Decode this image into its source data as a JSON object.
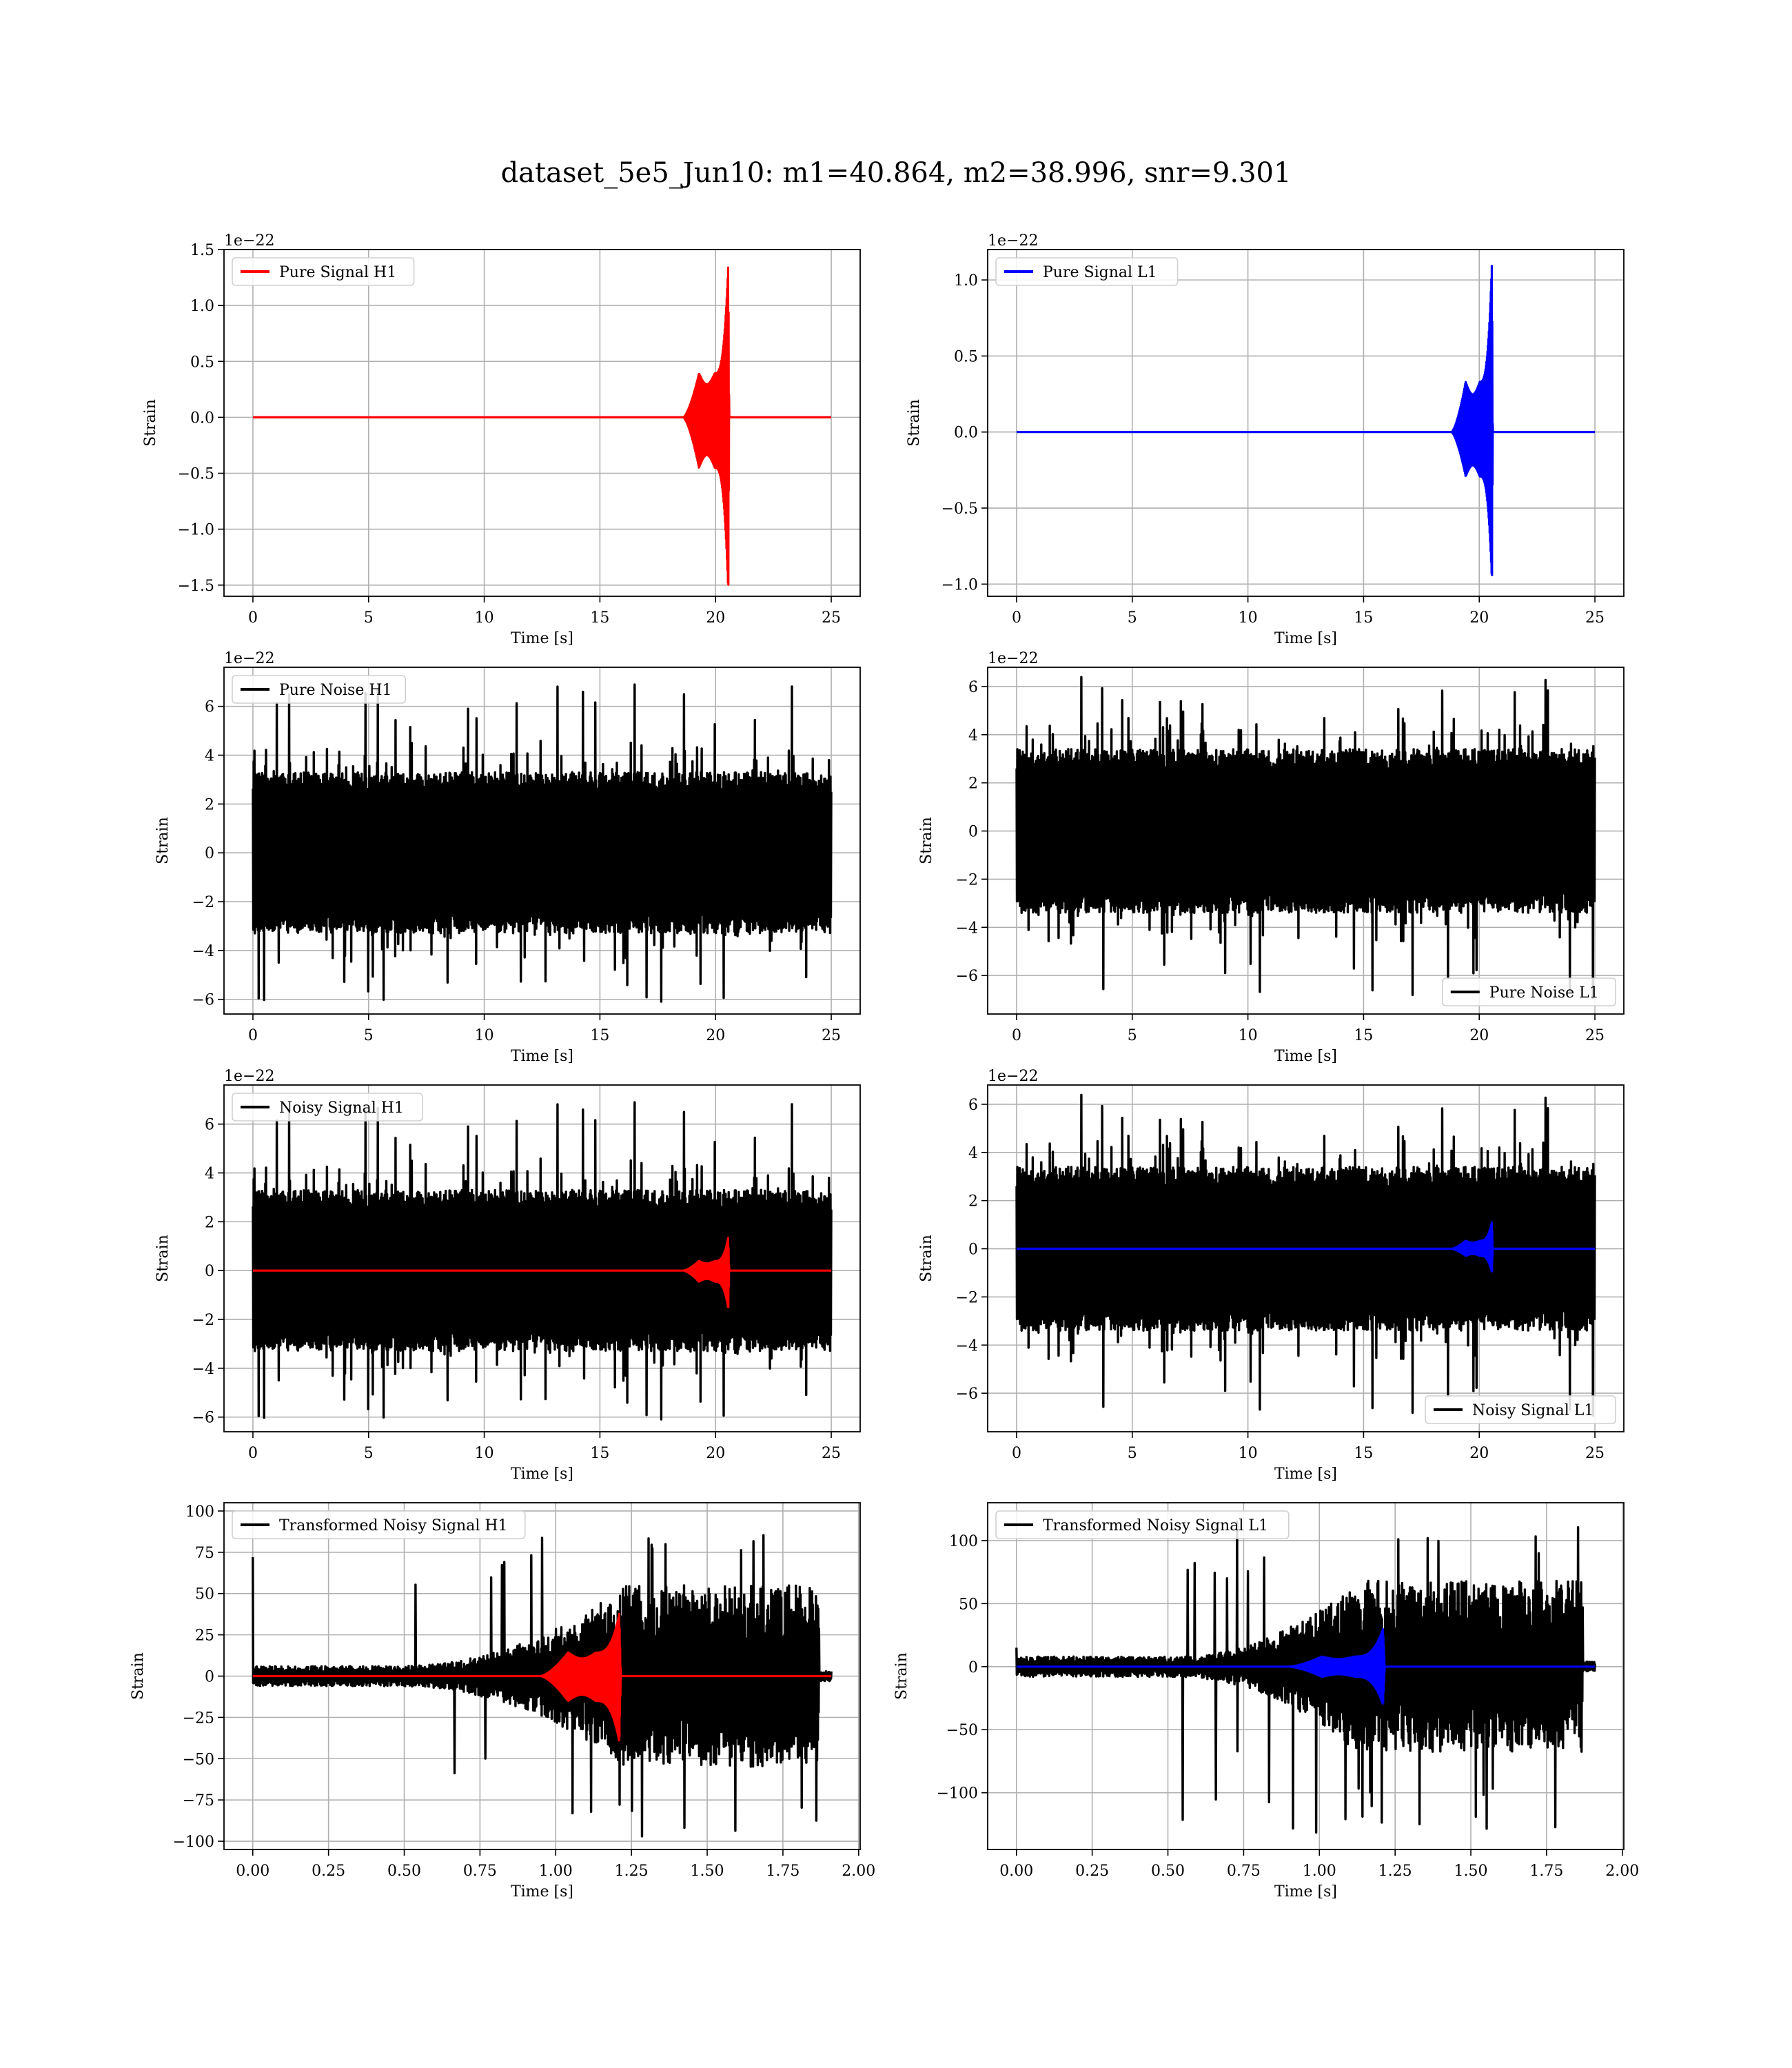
{
  "figure": {
    "title": "dataset_5e5_Jun10: m1=40.864, m2=38.996, snr=9.301",
    "colors": {
      "h1_signal": "#ff0000",
      "l1_signal": "#0000ff",
      "noise": "#000000",
      "grid": "#b0b0b0",
      "frame": "#000000"
    }
  },
  "chart_data": [
    {
      "id": "pure-signal-h1",
      "type": "line",
      "xlabel": "Time [s]",
      "ylabel": "Strain",
      "offset_text": "1e−22",
      "xlim": [
        -1.25,
        26.25
      ],
      "ylim": [
        -1.6,
        1.5
      ],
      "xticks": [
        0,
        5,
        10,
        15,
        20,
        25
      ],
      "xtick_labels": [
        "0",
        "5",
        "10",
        "15",
        "20",
        "25"
      ],
      "yticks": [
        -1.5,
        -1.0,
        -0.5,
        0.0,
        0.5,
        1.0,
        1.5
      ],
      "ytick_labels": [
        "−1.5",
        "−1.0",
        "−0.5",
        "0.0",
        "0.5",
        "1.0",
        "1.5"
      ],
      "legend": {
        "loc": "upper left"
      },
      "series": [
        {
          "name": "Pure Signal H1",
          "color": "#ff0000",
          "kind": "chirp",
          "x_start": 0,
          "x_end": 25,
          "t_merge": 20.55,
          "chirp_start": 18.6,
          "amp_plateau": 0.45,
          "amp_peak_pos": 1.38,
          "amp_peak_neg": -1.58,
          "scale": 1
        }
      ]
    },
    {
      "id": "pure-signal-l1",
      "type": "line",
      "xlabel": "Time [s]",
      "ylabel": "Strain",
      "offset_text": "1e−22",
      "xlim": [
        -1.25,
        26.25
      ],
      "ylim": [
        -1.08,
        1.2
      ],
      "xticks": [
        0,
        5,
        10,
        15,
        20,
        25
      ],
      "xtick_labels": [
        "0",
        "5",
        "10",
        "15",
        "20",
        "25"
      ],
      "yticks": [
        -1.0,
        -0.5,
        0.0,
        0.5,
        1.0
      ],
      "ytick_labels": [
        "−1.0",
        "−0.5",
        "0.0",
        "0.5",
        "1.0"
      ],
      "legend": {
        "loc": "upper left"
      },
      "series": [
        {
          "name": "Pure Signal L1",
          "color": "#0000ff",
          "kind": "chirp",
          "x_start": 0,
          "x_end": 25,
          "t_merge": 20.55,
          "chirp_start": 18.8,
          "amp_plateau": 0.33,
          "amp_peak_pos": 1.13,
          "amp_peak_neg": -1.0,
          "scale": 1
        }
      ]
    },
    {
      "id": "pure-noise-h1",
      "type": "line",
      "xlabel": "Time [s]",
      "ylabel": "Strain",
      "offset_text": "1e−22",
      "xlim": [
        -1.25,
        26.25
      ],
      "ylim": [
        -6.6,
        7.6
      ],
      "xticks": [
        0,
        5,
        10,
        15,
        20,
        25
      ],
      "xtick_labels": [
        "0",
        "5",
        "10",
        "15",
        "20",
        "25"
      ],
      "yticks": [
        -6,
        -4,
        -2,
        0,
        2,
        4,
        6
      ],
      "ytick_labels": [
        "−6",
        "−4",
        "−2",
        "0",
        "2",
        "4",
        "6"
      ],
      "legend": {
        "loc": "upper left"
      },
      "series": [
        {
          "name": "Pure Noise H1",
          "color": "#000000",
          "kind": "noise",
          "x_start": 0,
          "x_end": 25,
          "band": 3.3,
          "spike_max": 7.0,
          "spike_min": -6.1,
          "seed": 11
        }
      ]
    },
    {
      "id": "pure-noise-l1",
      "type": "line",
      "xlabel": "Time [s]",
      "ylabel": "Strain",
      "offset_text": "1e−22",
      "xlim": [
        -1.25,
        26.25
      ],
      "ylim": [
        -7.6,
        6.8
      ],
      "xticks": [
        0,
        5,
        10,
        15,
        20,
        25
      ],
      "xtick_labels": [
        "0",
        "5",
        "10",
        "15",
        "20",
        "25"
      ],
      "yticks": [
        -6,
        -4,
        -2,
        0,
        2,
        4,
        6
      ],
      "ytick_labels": [
        "−6",
        "−4",
        "−2",
        "0",
        "2",
        "4",
        "6"
      ],
      "legend": {
        "loc": "lower right"
      },
      "series": [
        {
          "name": "Pure Noise L1",
          "color": "#000000",
          "kind": "noise",
          "x_start": 0,
          "x_end": 25,
          "band": 3.4,
          "spike_max": 6.4,
          "spike_min": -7.1,
          "seed": 23
        }
      ]
    },
    {
      "id": "noisy-signal-h1",
      "type": "line",
      "xlabel": "Time [s]",
      "ylabel": "Strain",
      "offset_text": "1e−22",
      "xlim": [
        -1.25,
        26.25
      ],
      "ylim": [
        -6.6,
        7.6
      ],
      "xticks": [
        0,
        5,
        10,
        15,
        20,
        25
      ],
      "xtick_labels": [
        "0",
        "5",
        "10",
        "15",
        "20",
        "25"
      ],
      "yticks": [
        -6,
        -4,
        -2,
        0,
        2,
        4,
        6
      ],
      "ytick_labels": [
        "−6",
        "−4",
        "−2",
        "0",
        "2",
        "4",
        "6"
      ],
      "legend": {
        "loc": "upper left"
      },
      "series": [
        {
          "name": "Noisy Signal H1",
          "color": "#000000",
          "kind": "noise",
          "x_start": 0,
          "x_end": 25,
          "band": 3.3,
          "spike_max": 7.0,
          "spike_min": -6.1,
          "seed": 11
        },
        {
          "name": "",
          "color": "#ff0000",
          "kind": "chirp",
          "x_start": 0,
          "x_end": 25,
          "t_merge": 20.55,
          "chirp_start": 18.6,
          "amp_plateau": 0.45,
          "amp_peak_pos": 1.38,
          "amp_peak_neg": -1.58,
          "scale": 1
        }
      ]
    },
    {
      "id": "noisy-signal-l1",
      "type": "line",
      "xlabel": "Time [s]",
      "ylabel": "Strain",
      "offset_text": "1e−22",
      "xlim": [
        -1.25,
        26.25
      ],
      "ylim": [
        -7.6,
        6.8
      ],
      "xticks": [
        0,
        5,
        10,
        15,
        20,
        25
      ],
      "xtick_labels": [
        "0",
        "5",
        "10",
        "15",
        "20",
        "25"
      ],
      "yticks": [
        -6,
        -4,
        -2,
        0,
        2,
        4,
        6
      ],
      "ytick_labels": [
        "−6",
        "−4",
        "−2",
        "0",
        "2",
        "4",
        "6"
      ],
      "legend": {
        "loc": "lower right"
      },
      "series": [
        {
          "name": "Noisy Signal L1",
          "color": "#000000",
          "kind": "noise",
          "x_start": 0,
          "x_end": 25,
          "band": 3.4,
          "spike_max": 6.4,
          "spike_min": -7.1,
          "seed": 23
        },
        {
          "name": "",
          "color": "#0000ff",
          "kind": "chirp",
          "x_start": 0,
          "x_end": 25,
          "t_merge": 20.55,
          "chirp_start": 18.8,
          "amp_plateau": 0.33,
          "amp_peak_pos": 1.13,
          "amp_peak_neg": -1.0,
          "scale": 1
        }
      ]
    },
    {
      "id": "transformed-h1",
      "type": "line",
      "xlabel": "Time [s]",
      "ylabel": "Strain",
      "offset_text": "",
      "xlim": [
        -0.095,
        2.005
      ],
      "ylim": [
        -105,
        105
      ],
      "xticks": [
        0.0,
        0.25,
        0.5,
        0.75,
        1.0,
        1.25,
        1.5,
        1.75,
        2.0
      ],
      "xtick_labels": [
        "0.00",
        "0.25",
        "0.50",
        "0.75",
        "1.00",
        "1.25",
        "1.50",
        "1.75",
        "2.00"
      ],
      "yticks": [
        -100,
        -75,
        -50,
        -25,
        0,
        25,
        50,
        75,
        100
      ],
      "ytick_labels": [
        "−100",
        "−75",
        "−50",
        "−25",
        "0",
        "25",
        "50",
        "75",
        "100"
      ],
      "legend": {
        "loc": "upper left"
      },
      "series": [
        {
          "name": "Transformed Noisy Signal H1",
          "color": "#000000",
          "kind": "whitened",
          "x_start": 0,
          "x_end": 1.87,
          "tail_end": 1.91,
          "rise_start": 0.45,
          "rise_end": 1.23,
          "amp_low": 6,
          "amp_high": 55,
          "spike_max": 93,
          "spike_min": -100,
          "start_spike": 72,
          "seed": 31
        },
        {
          "name": "",
          "color": "#ff0000",
          "kind": "chirp",
          "x_start": 0,
          "x_end": 1.91,
          "t_merge": 1.21,
          "chirp_start": 0.95,
          "amp_plateau": 15,
          "amp_peak_pos": 38,
          "amp_peak_neg": -40,
          "scale": 1
        }
      ]
    },
    {
      "id": "transformed-l1",
      "type": "line",
      "xlabel": "Time [s]",
      "ylabel": "Strain",
      "offset_text": "",
      "xlim": [
        -0.095,
        2.005
      ],
      "ylim": [
        -145,
        130
      ],
      "xticks": [
        0.0,
        0.25,
        0.5,
        0.75,
        1.0,
        1.25,
        1.5,
        1.75,
        2.0
      ],
      "xtick_labels": [
        "0.00",
        "0.25",
        "0.50",
        "0.75",
        "1.00",
        "1.25",
        "1.50",
        "1.75",
        "2.00"
      ],
      "yticks": [
        -100,
        -50,
        0,
        50,
        100
      ],
      "ytick_labels": [
        "−100",
        "−50",
        "0",
        "50",
        "100"
      ],
      "legend": {
        "loc": "upper left"
      },
      "series": [
        {
          "name": "Transformed Noisy Signal L1",
          "color": "#000000",
          "kind": "whitened",
          "x_start": 0,
          "x_end": 1.87,
          "tail_end": 1.91,
          "rise_start": 0.5,
          "rise_end": 1.12,
          "amp_low": 8,
          "amp_high": 68,
          "spike_max": 118,
          "spike_min": -135,
          "start_spike": 15,
          "seed": 47
        },
        {
          "name": "",
          "color": "#0000ff",
          "kind": "chirp",
          "x_start": 0,
          "x_end": 1.91,
          "t_merge": 1.21,
          "chirp_start": 0.9,
          "amp_plateau": 8,
          "amp_peak_pos": 30,
          "amp_peak_neg": -30,
          "scale": 1
        }
      ]
    }
  ]
}
